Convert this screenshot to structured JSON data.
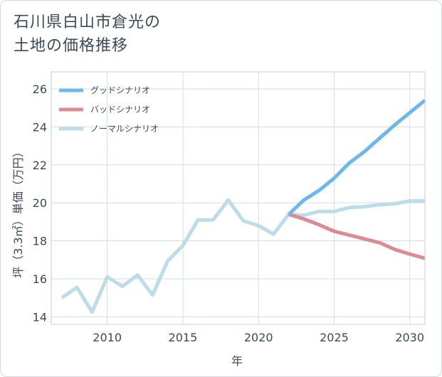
{
  "title": {
    "line1": "石川県白山市倉光の",
    "line2": "土地の価格推移"
  },
  "chart_data": {
    "type": "line",
    "title": "石川県白山市倉光の土地の価格推移",
    "xlabel": "年",
    "ylabel": "坪（3.3㎡）単価（万円）",
    "xlim": [
      2006.3,
      2031
    ],
    "ylim": [
      13.6,
      26.9
    ],
    "xticks": [
      2010,
      2015,
      2020,
      2025,
      2030
    ],
    "yticks": [
      14,
      16,
      18,
      20,
      22,
      24,
      26
    ],
    "grid": true,
    "legend_position": "top-left",
    "series": [
      {
        "name": "グッドシナリオ",
        "color": "#6cb8ea",
        "x": [
          2022,
          2023,
          2024,
          2025,
          2026,
          2027,
          2028,
          2029,
          2030,
          2031
        ],
        "values": [
          19.4,
          20.15,
          20.65,
          21.3,
          22.1,
          22.7,
          23.4,
          24.1,
          24.75,
          25.4
        ]
      },
      {
        "name": "バッドシナリオ",
        "color": "#dd8a94",
        "x": [
          2022,
          2023,
          2024,
          2025,
          2026,
          2027,
          2028,
          2029,
          2030,
          2031
        ],
        "values": [
          19.4,
          19.15,
          18.85,
          18.5,
          18.3,
          18.1,
          17.9,
          17.55,
          17.3,
          17.08
        ]
      },
      {
        "name": "ノーマルシナリオ",
        "color": "#bcdcea",
        "x": [
          2007,
          2008,
          2009,
          2010,
          2011,
          2012,
          2013,
          2014,
          2015,
          2016,
          2017,
          2018,
          2019,
          2020,
          2021,
          2022,
          2023,
          2024,
          2025,
          2026,
          2027,
          2028,
          2029,
          2030,
          2031
        ],
        "values": [
          15.0,
          15.55,
          14.25,
          16.1,
          15.6,
          16.2,
          15.15,
          16.95,
          17.75,
          19.1,
          19.1,
          20.15,
          19.05,
          18.8,
          18.35,
          19.4,
          19.35,
          19.55,
          19.55,
          19.75,
          19.8,
          19.9,
          19.95,
          20.1,
          20.1
        ]
      }
    ]
  }
}
